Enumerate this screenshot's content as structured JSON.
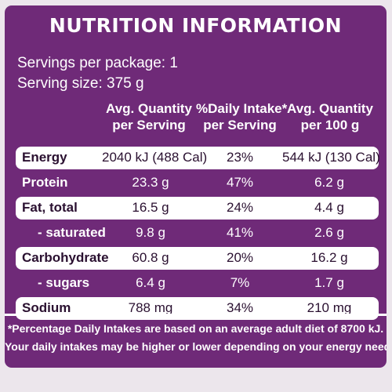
{
  "title": "NUTRITION INFORMATION",
  "servings_per_package": "Servings per package: 1",
  "serving_size": "Serving size: 375 g",
  "columns": [
    {
      "line1": "Avg. Quantity",
      "line2": "per Serving"
    },
    {
      "line1": "%Daily Intake*",
      "line2": "per Serving"
    },
    {
      "line1": "Avg. Quantity",
      "line2": "per 100 g"
    }
  ],
  "rows": [
    {
      "name": "Energy",
      "per_serving": "2040 kJ (488 Cal)",
      "daily_intake": "23%",
      "per_100g": "544 kJ (130 Cal)"
    },
    {
      "name": "Protein",
      "per_serving": "23.3 g",
      "daily_intake": "47%",
      "per_100g": "6.2 g"
    },
    {
      "name": "Fat, total",
      "per_serving": "16.5 g",
      "daily_intake": "24%",
      "per_100g": "4.4 g"
    },
    {
      "name": "- saturated",
      "per_serving": "9.8 g",
      "daily_intake": "41%",
      "per_100g": "2.6 g"
    },
    {
      "name": "Carbohydrate",
      "per_serving": "60.8 g",
      "daily_intake": "20%",
      "per_100g": "16.2 g"
    },
    {
      "name": "- sugars",
      "per_serving": "6.4 g",
      "daily_intake": "7%",
      "per_100g": "1.7 g"
    },
    {
      "name": "Sodium",
      "per_serving": "788 mg",
      "daily_intake": "34%",
      "per_100g": "210 mg"
    }
  ],
  "footnote_line1": "*Percentage Daily Intakes are based on an average adult diet of 8700 kJ.",
  "footnote_line2": "Your daily intakes may be higher or lower depending on your energy needs.",
  "colors": {
    "panel": "#6f2a78",
    "band": "#ffffff",
    "text": "#ffffff"
  }
}
